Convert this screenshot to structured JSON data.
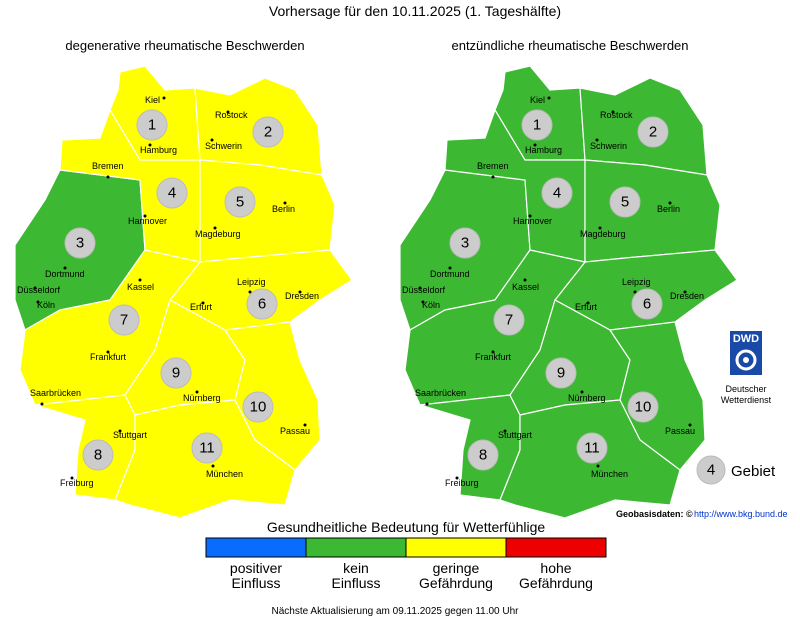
{
  "title": "Vorhersage für den 10.11.2025 (1. Tageshälfte)",
  "region_numbers": [
    "1",
    "2",
    "3",
    "4",
    "5",
    "6",
    "7",
    "8",
    "9",
    "10",
    "11"
  ],
  "cities": [
    "Kiel",
    "Rostock",
    "Hamburg",
    "Schwerin",
    "Bremen",
    "Hannover",
    "Berlin",
    "Magdeburg",
    "Dortmund",
    "Düsseldorf",
    "Köln",
    "Kassel",
    "Leipzig",
    "Dresden",
    "Erfurt",
    "Frankfurt",
    "Saarbrücken",
    "Nürnberg",
    "Passau",
    "Stuttgart",
    "München",
    "Freiburg"
  ],
  "maps": [
    {
      "title": "degenerative rheumatische Beschwerden",
      "levels": [
        2,
        2,
        1,
        2,
        2,
        2,
        2,
        2,
        2,
        2,
        2
      ]
    },
    {
      "title": "entzündliche rheumatische Beschwerden",
      "levels": [
        1,
        1,
        1,
        1,
        1,
        1,
        1,
        1,
        1,
        1,
        1
      ]
    }
  ],
  "legend": {
    "title": "Gesundheitliche Bedeutung für Wetterfühlige",
    "items": [
      {
        "label": [
          "positiver",
          "Einfluss"
        ],
        "color": "#0a6cff"
      },
      {
        "label": [
          "kein",
          "Einfluss"
        ],
        "color": "#3cb832"
      },
      {
        "label": [
          "geringe",
          "Gefährdung"
        ],
        "color": "#ffff00"
      },
      {
        "label": [
          "hohe",
          "Gefährdung"
        ],
        "color": "#ee0000"
      }
    ]
  },
  "logo": {
    "abbr": "DWD",
    "name": [
      "Deutscher",
      "Wetterdienst"
    ]
  },
  "key": {
    "number": "4",
    "label": "Gebiet"
  },
  "source": {
    "label": "Geobasisdaten: ©",
    "url": "http://www.bkg.bund.de"
  },
  "footer": "Nächste Aktualisierung am 09.11.2025 gegen 11.00 Uhr"
}
